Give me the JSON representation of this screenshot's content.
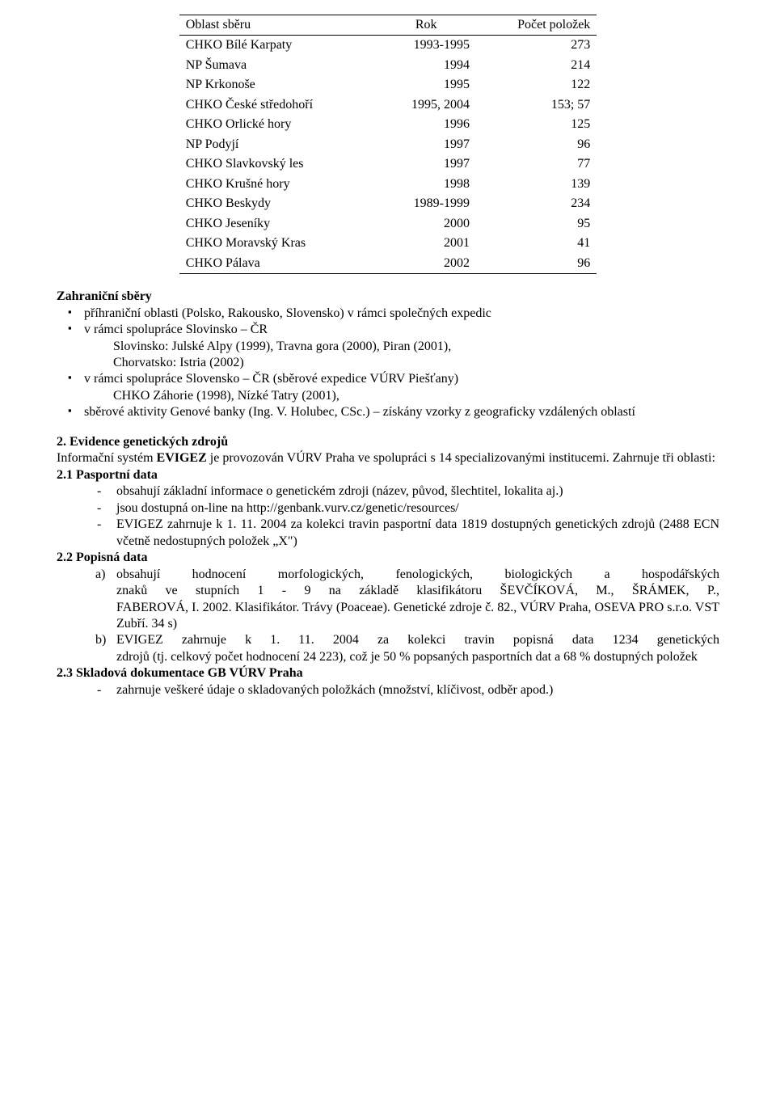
{
  "table": {
    "headers": [
      "Oblast sběru",
      "Rok",
      "Počet položek"
    ],
    "rows": [
      [
        "CHKO Bílé Karpaty",
        "1993-1995",
        "273"
      ],
      [
        "NP Šumava",
        "1994",
        "214"
      ],
      [
        "NP Krkonoše",
        "1995",
        "122"
      ],
      [
        "CHKO České středohoří",
        "1995, 2004",
        "153; 57"
      ],
      [
        "CHKO Orlické hory",
        "1996",
        "125"
      ],
      [
        "NP Podyjí",
        "1997",
        "96"
      ],
      [
        "CHKO Slavkovský les",
        "1997",
        "77"
      ],
      [
        "CHKO Krušné hory",
        "1998",
        "139"
      ],
      [
        "CHKO Beskydy",
        "1989-1999",
        "234"
      ],
      [
        "CHKO Jeseníky",
        "2000",
        "95"
      ],
      [
        "CHKO Moravský Kras",
        "2001",
        "41"
      ],
      [
        "CHKO Pálava",
        "2002",
        "96"
      ]
    ]
  },
  "zahranicni": {
    "title": "Zahraniční sběry",
    "items": [
      {
        "text": "příhraniční oblasti (Polsko, Rakousko, Slovensko) v rámci společných expedic"
      },
      {
        "text": "v rámci spolupráce Slovinsko – ČR",
        "sub": [
          "Slovinsko: Julské Alpy (1999), Travna gora (2000), Piran (2001),",
          "Chorvatsko: Istria (2002)"
        ]
      },
      {
        "text": "v rámci spolupráce Slovensko – ČR (sběrové expedice VÚRV Piešťany)",
        "sub": [
          "CHKO Záhorie (1998), Nízké Tatry (2001),"
        ]
      },
      {
        "text": "sběrové aktivity Genové banky (Ing. V. Holubec, CSc.) – získány vzorky z geograficky vzdálených oblastí"
      }
    ]
  },
  "sec2": {
    "heading": "2. Evidence genetických zdrojů",
    "intro_pre": "Informační systém ",
    "intro_b": "EVIGEZ",
    "intro_post": " je provozován VÚRV Praha ve spolupráci s 14 specializovanými institucemi. Zahrnuje tři oblasti:",
    "s21": {
      "title": "2.1 Pasportní data",
      "items": [
        "obsahují základní informace o genetickém zdroji (název, původ, šlechtitel, lokalita aj.)",
        "jsou dostupná on-line na http://genbank.vurv.cz/genetic/resources/",
        "EVIGEZ zahrnuje k 1. 11. 2004 za kolekci travin pasportní data 1819 dostupných genetických zdrojů (2488 ECN včetně nedostupných položek „X\")"
      ]
    },
    "s22": {
      "title": "2.2 Popisná data",
      "a": {
        "l1": "obsahují hodnocení morfologických, fenologických, biologických a hospodářských",
        "l2": "znaků ve stupních 1 - 9 na základě klasifikátoru ŠEVČÍKOVÁ, M., ŠRÁMEK, P.,",
        "rest": "FABEROVÁ, I. 2002. Klasifikátor. Trávy (Poaceae). Genetické zdroje č. 82., VÚRV Praha, OSEVA PRO s.r.o. VST Zubří. 34 s)"
      },
      "b": {
        "l1": "EVIGEZ zahrnuje k 1. 11. 2004 za kolekci travin popisná data 1234 genetických",
        "rest": "zdrojů (tj. celkový počet hodnocení 24 223), což je 50 % popsaných pasportních dat a 68 % dostupných položek"
      }
    },
    "s23": {
      "title": "2.3 Skladová dokumentace GB VÚRV Praha",
      "items": [
        "zahrnuje veškeré údaje o skladovaných položkách (množství, klíčivost, odběr apod.)"
      ]
    }
  }
}
